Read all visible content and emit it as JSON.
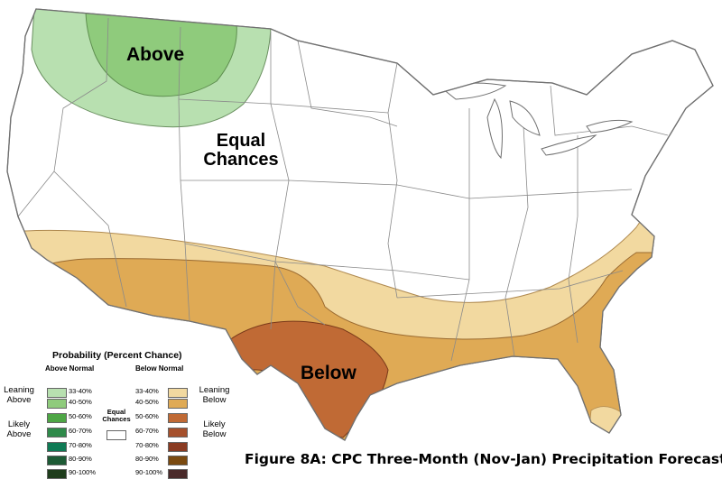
{
  "map": {
    "labels": {
      "above": "Above",
      "equal_line1": "Equal",
      "equal_line2": "Chances",
      "below": "Below"
    },
    "colors": {
      "outline": "#707070",
      "state_lines": "#8a8a8a",
      "above_33_40": "#b8e0b0",
      "above_40_50": "#8fcb7c",
      "below_33_40": "#f2d9a0",
      "below_40_50": "#dfaa55",
      "below_50_60": "#c06a35"
    }
  },
  "legend": {
    "title": "Probability (Percent Chance)",
    "above_head": "Above Normal",
    "below_head": "Below Normal",
    "leaning_above": "Leaning Above",
    "likely_above": "Likely Above",
    "leaning_below": "Leaning Below",
    "likely_below": "Likely Below",
    "equal_chances": "Equal Chances",
    "above_items": [
      {
        "range": "33-40%",
        "color": "#b8e0b0"
      },
      {
        "range": "40-50%",
        "color": "#8fcb7c"
      },
      {
        "range": "50-60%",
        "color": "#4ea645"
      },
      {
        "range": "60-70%",
        "color": "#2f8a4a"
      },
      {
        "range": "70-80%",
        "color": "#0f7a55"
      },
      {
        "range": "80-90%",
        "color": "#1d5a35"
      },
      {
        "range": "90-100%",
        "color": "#1f3d1c"
      }
    ],
    "below_items": [
      {
        "range": "33-40%",
        "color": "#f2d9a0"
      },
      {
        "range": "40-50%",
        "color": "#dfaa55"
      },
      {
        "range": "50-60%",
        "color": "#c06a35"
      },
      {
        "range": "60-70%",
        "color": "#a5502c"
      },
      {
        "range": "70-80%",
        "color": "#8a3b22"
      },
      {
        "range": "80-90%",
        "color": "#7a4a10"
      },
      {
        "range": "90-100%",
        "color": "#4a2a2a"
      }
    ]
  },
  "caption": "Figure 8A: CPC Three-Month (Nov-Jan) Precipitation Forecast"
}
